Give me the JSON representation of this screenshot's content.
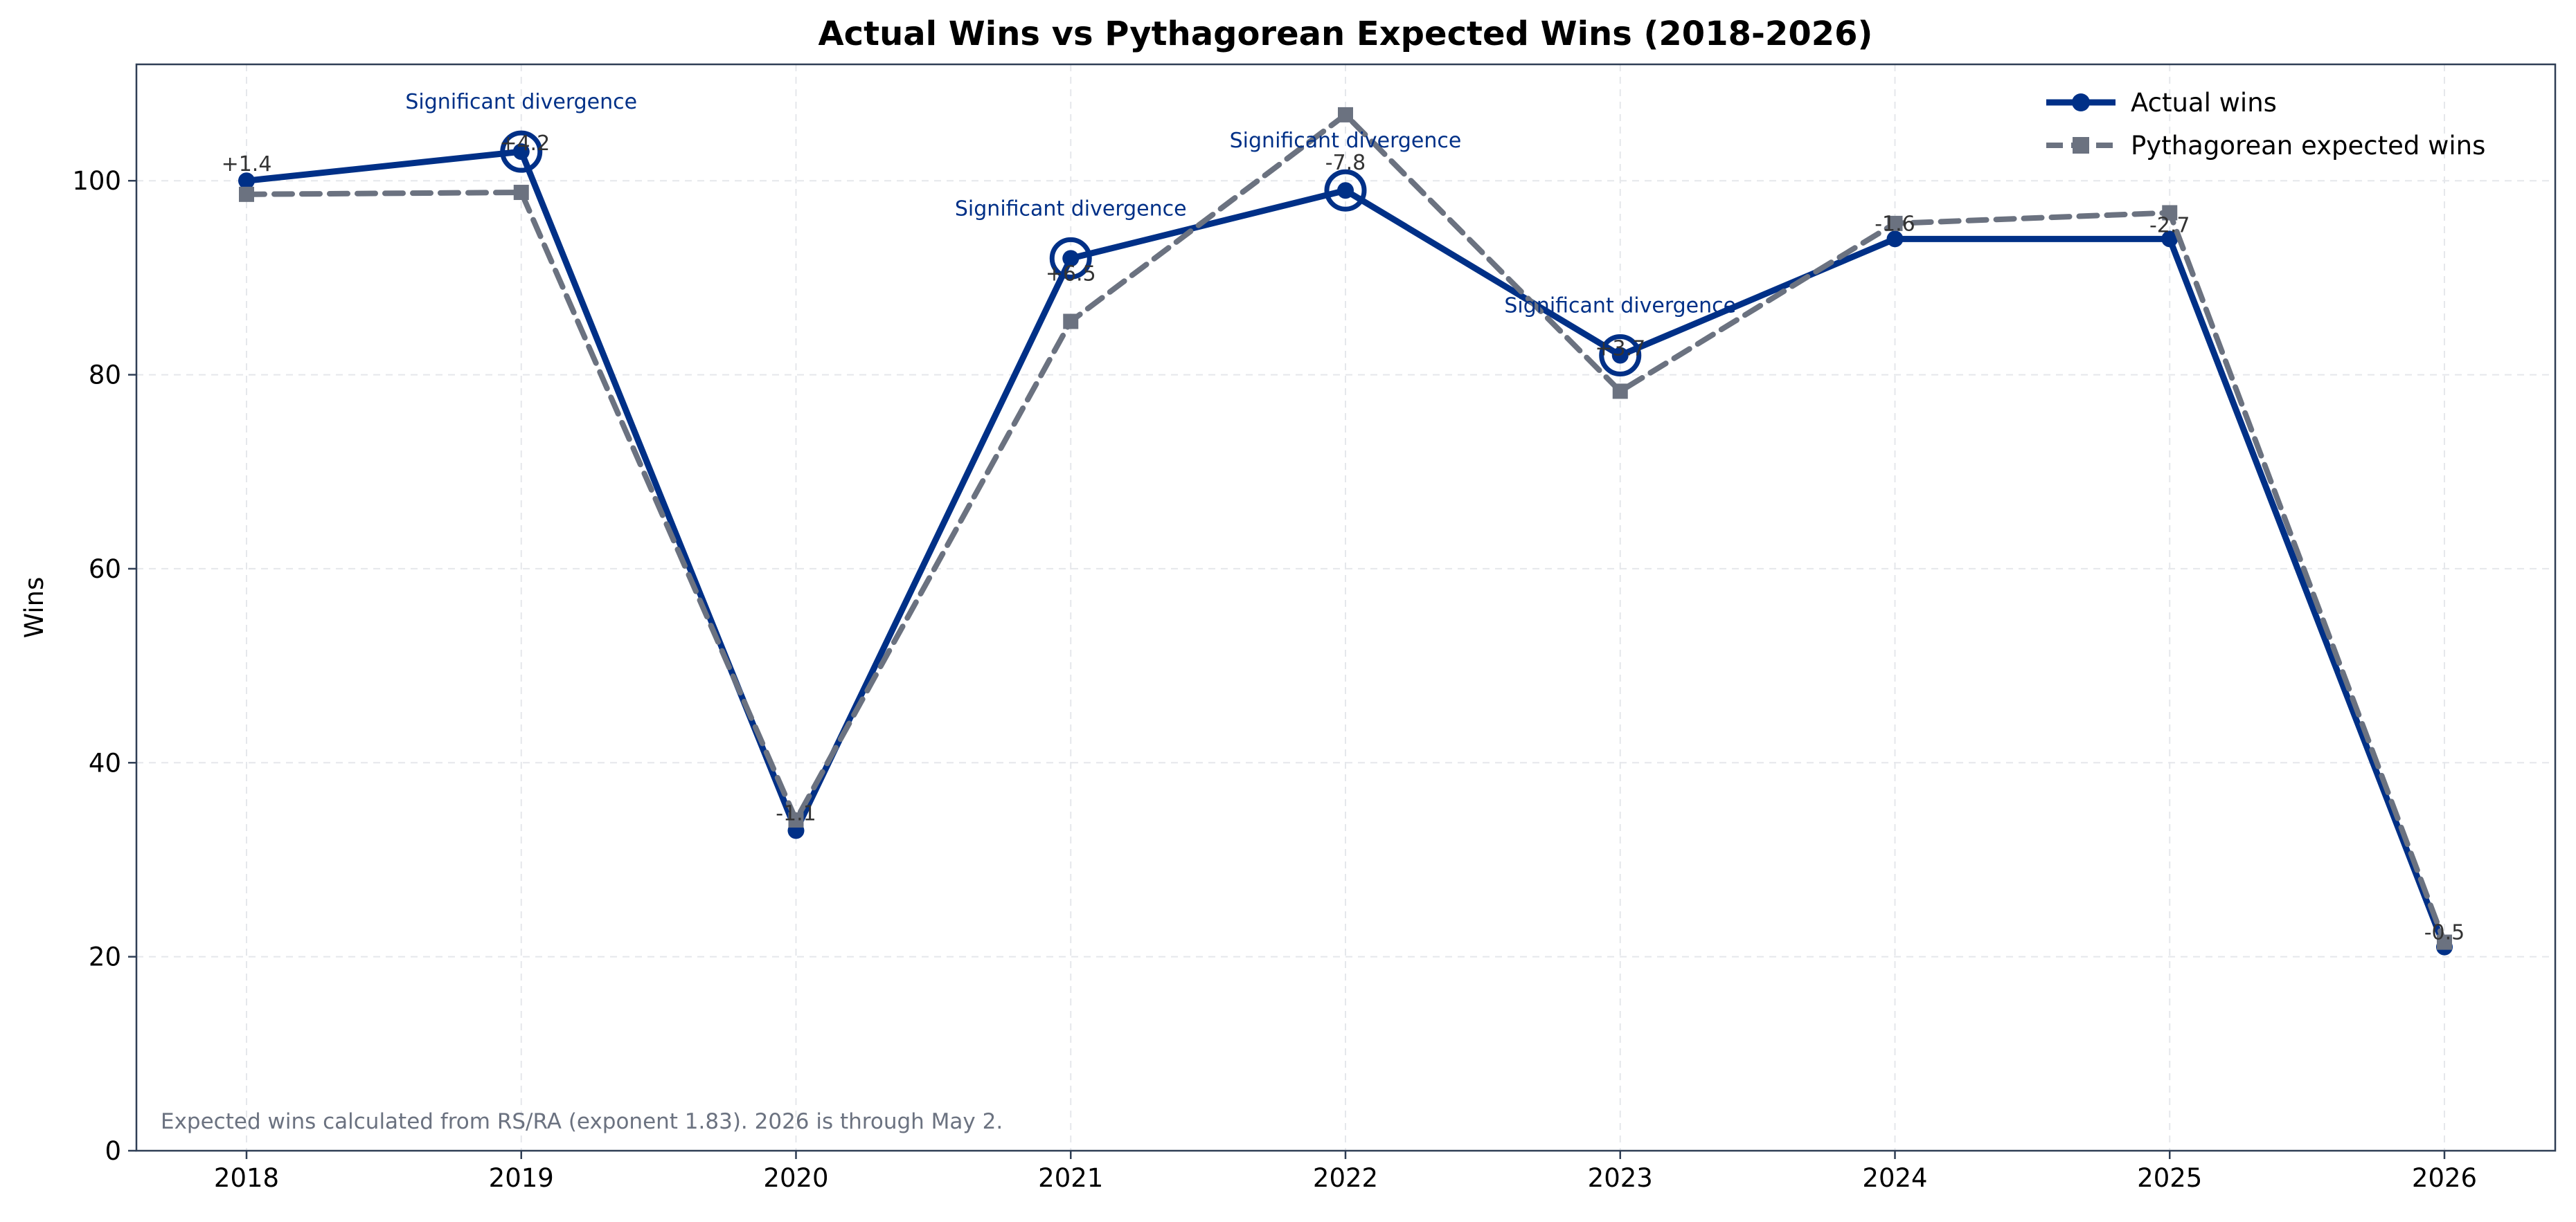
{
  "chart_data": {
    "type": "line",
    "title": "Actual Wins vs Pythagorean Expected Wins (2018-2026)",
    "xlabel": "",
    "ylabel": "Wins",
    "categories": [
      "2018",
      "2019",
      "2020",
      "2021",
      "2022",
      "2023",
      "2024",
      "2025",
      "2026"
    ],
    "ylim": [
      0,
      112
    ],
    "yticks": [
      0,
      20,
      40,
      60,
      80,
      100
    ],
    "grid": true,
    "legend_position": "top-right",
    "series": [
      {
        "name": "Actual wins",
        "color": "#003087",
        "style": "solid",
        "marker": "circle",
        "values": [
          100,
          103,
          33,
          92,
          99,
          82,
          94,
          94,
          21
        ]
      },
      {
        "name": "Pythagorean expected wins",
        "color": "#6b7280",
        "style": "dashed",
        "marker": "square",
        "values": [
          98.6,
          98.8,
          34.1,
          85.5,
          106.8,
          78.3,
          95.6,
          96.7,
          21.5
        ]
      }
    ],
    "difference_labels": [
      "+1.4",
      "+4.2",
      "-1.1",
      "+6.5",
      "-7.8",
      "+3.7",
      "-1.6",
      "-2.7",
      "-0.5"
    ],
    "highlights": [
      {
        "index": 1,
        "label": "Significant divergence"
      },
      {
        "index": 3,
        "label": "Significant divergence"
      },
      {
        "index": 4,
        "label": "Significant divergence"
      },
      {
        "index": 5,
        "label": "Significant divergence"
      }
    ],
    "footnote": "Expected wins calculated from RS/RA (exponent 1.83). 2026 is through May 2."
  }
}
